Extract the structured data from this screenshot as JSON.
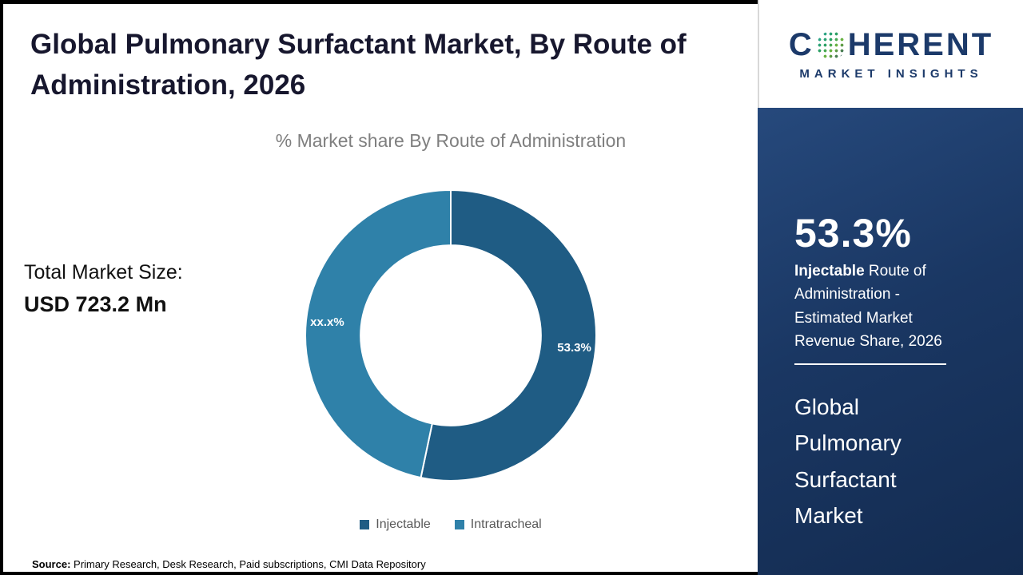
{
  "header": {
    "title": "Global Pulmonary Surfactant Market, By Route of Administration, 2026"
  },
  "chart_data": {
    "type": "donut",
    "title": "% Market share By Route of Administration",
    "categories": [
      "Injectable",
      "Intratracheal"
    ],
    "values": [
      53.3,
      46.7
    ],
    "slice_labels": [
      "53.3%",
      "xx.x%"
    ],
    "colors": [
      "#1f5c84",
      "#2f81a9"
    ],
    "legend_position": "bottom",
    "donut_hole_ratio": 0.62
  },
  "left_panel": {
    "total_label": "Total Market Size:",
    "total_value": "USD 723.2 Mn"
  },
  "footer": {
    "source_label": "Source:",
    "source_text": " Primary Research, Desk Research, Paid subscriptions, CMI Data Repository"
  },
  "brand": {
    "wordmark_prefix": "C",
    "wordmark_suffix": "HERENT",
    "tagline": "MARKET INSIGHTS"
  },
  "side_panel": {
    "stat_value": "53.3%",
    "desc_bold": "Injectable",
    "desc_rest": " Route of Administration - Estimated Market Revenue Share, 2026",
    "market_name": "Global Pulmonary Surfactant Market"
  },
  "panel_colors": {
    "navy": "#1a3763",
    "brand_navy": "#1c3a6a"
  }
}
